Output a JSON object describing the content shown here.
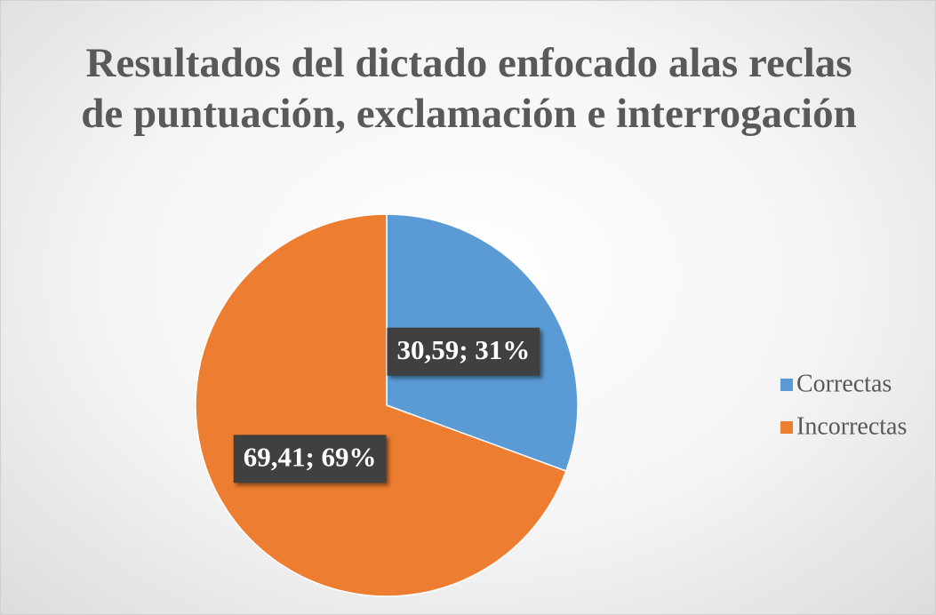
{
  "chart_data": {
    "type": "pie",
    "title": "Resultados del dictado enfocado alas reclas de puntuación, exclamación e interrogación",
    "categories": [
      "Correctas",
      "Incorrectas"
    ],
    "values": [
      30.59,
      69.41
    ],
    "value_labels": [
      "30,59; 31%",
      "69,41; 69%"
    ],
    "colors": [
      "#5b9bd5",
      "#ed7d31"
    ],
    "legend": "right"
  }
}
